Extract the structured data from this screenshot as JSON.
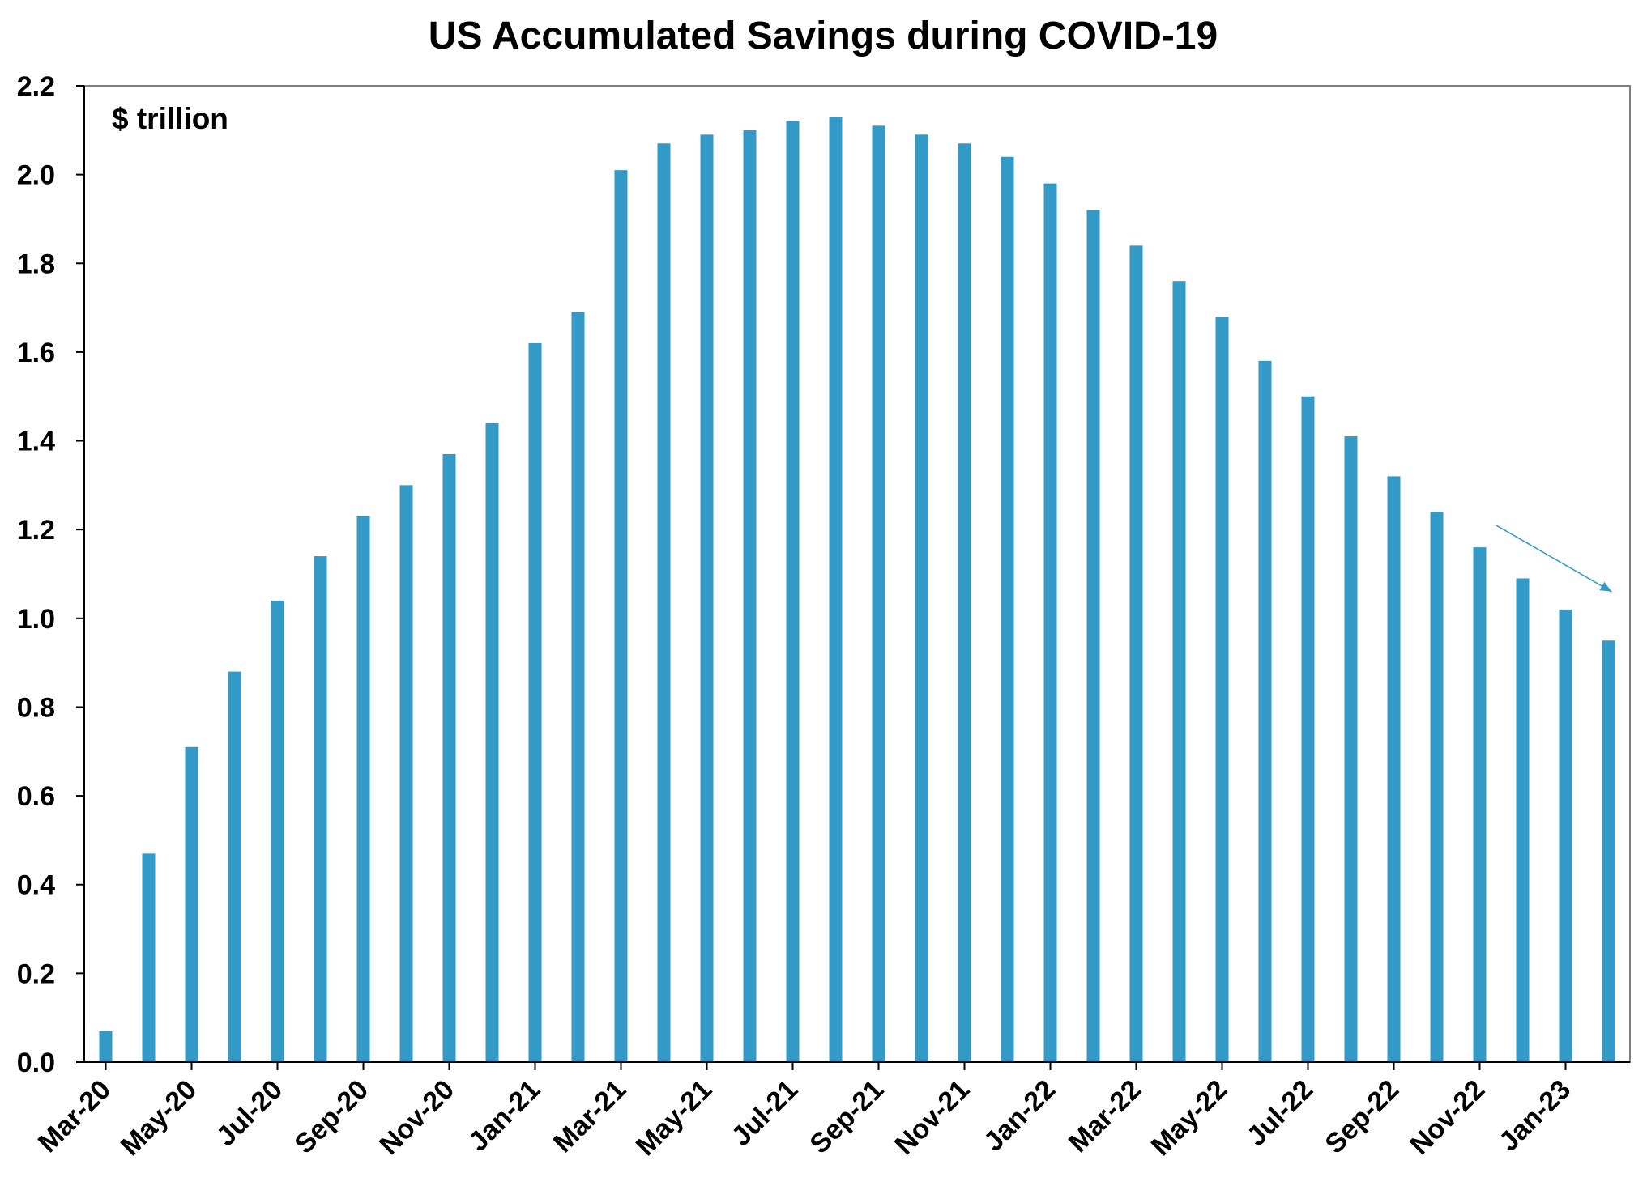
{
  "chart_data": {
    "type": "bar",
    "title": "US Accumulated Savings during COVID-19",
    "unit_label": "$ trillion",
    "xlabel": "",
    "ylabel": "",
    "ylim": [
      0,
      2.2
    ],
    "yticks": [
      "0.0",
      "0.2",
      "0.4",
      "0.6",
      "0.8",
      "1.0",
      "1.2",
      "1.4",
      "1.6",
      "1.8",
      "2.0",
      "2.2"
    ],
    "grid": false,
    "legend": "none",
    "bar_color": "#3399c6",
    "arrow_color": "#3399c6",
    "categories": [
      "Mar-20",
      "Apr-20",
      "May-20",
      "Jun-20",
      "Jul-20",
      "Aug-20",
      "Sep-20",
      "Oct-20",
      "Nov-20",
      "Dec-20",
      "Jan-21",
      "Feb-21",
      "Mar-21",
      "Apr-21",
      "May-21",
      "Jun-21",
      "Jul-21",
      "Aug-21",
      "Sep-21",
      "Oct-21",
      "Nov-21",
      "Dec-21",
      "Jan-22",
      "Feb-22",
      "Mar-22",
      "Apr-22",
      "May-22",
      "Jun-22",
      "Jul-22",
      "Aug-22",
      "Sep-22",
      "Oct-22",
      "Nov-22",
      "Dec-22",
      "Jan-23",
      "Feb-23"
    ],
    "values": [
      0.07,
      0.47,
      0.71,
      0.88,
      1.04,
      1.14,
      1.23,
      1.3,
      1.37,
      1.44,
      1.62,
      1.69,
      2.01,
      2.07,
      2.09,
      2.1,
      2.12,
      2.13,
      2.11,
      2.09,
      2.07,
      2.04,
      1.98,
      1.92,
      1.84,
      1.76,
      1.68,
      1.58,
      1.5,
      1.41,
      1.32,
      1.24,
      1.16,
      1.09,
      1.02,
      0.95
    ],
    "x_tick_labels": [
      "Mar-20",
      "May-20",
      "Jul-20",
      "Sep-20",
      "Nov-20",
      "Jan-21",
      "Mar-21",
      "May-21",
      "Jul-21",
      "Sep-21",
      "Nov-21",
      "Jan-22",
      "Mar-22",
      "May-22",
      "Jul-22",
      "Sep-22",
      "Nov-22",
      "Jan-23"
    ],
    "trend_arrow": {
      "from": {
        "x": "Nov-22",
        "y": 1.21
      },
      "to": {
        "x": "Feb-23",
        "y": 1.06
      }
    }
  }
}
